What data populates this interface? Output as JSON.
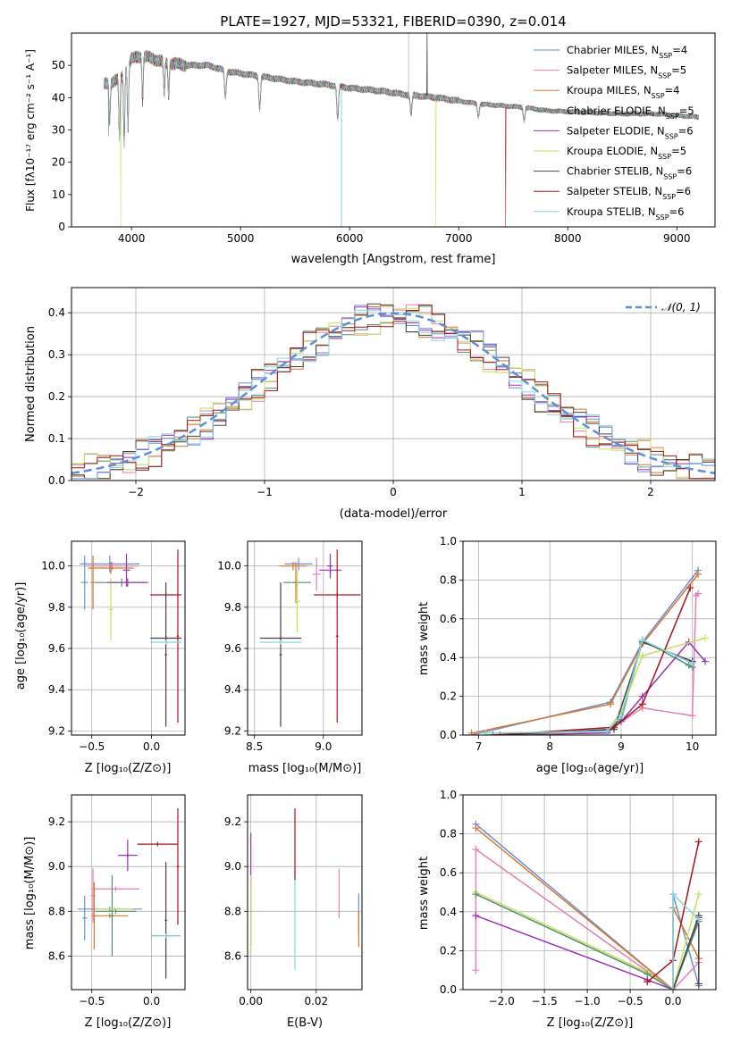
{
  "title": "PLATE=1927, MJD=53321, FIBERID=0390, z=0.014",
  "legend_labels": [
    {
      "base": "Chabrier MILES, N",
      "sub": "SSP",
      "rest": "=4",
      "color": "#6a8fd6"
    },
    {
      "base": "Salpeter MILES, N",
      "sub": "SSP",
      "rest": "=5",
      "color": "#e57fb4"
    },
    {
      "base": "Kroupa MILES, N",
      "sub": "SSP",
      "rest": "=4",
      "color": "#d9762a"
    },
    {
      "base": "Chabrier ELODIE, N",
      "sub": "SSP",
      "rest": "=5",
      "color": "#4f8f73"
    },
    {
      "base": "Salpeter ELODIE, N",
      "sub": "SSP",
      "rest": "=6",
      "color": "#9b32b5"
    },
    {
      "base": "Kroupa ELODIE, N",
      "sub": "SSP",
      "rest": "=5",
      "color": "#c6e05a"
    },
    {
      "base": "Chabrier STELIB, N",
      "sub": "SSP",
      "rest": "=6",
      "color": "#444444"
    },
    {
      "base": "Salpeter STELIB, N",
      "sub": "SSP",
      "rest": "=6",
      "color": "#a8141b"
    },
    {
      "base": "Kroupa STELIB, N",
      "sub": "SSP",
      "rest": "=6",
      "color": "#85d6e0"
    }
  ],
  "labels": {
    "spec_xlabel": "wavelength [Angstrom, rest frame]",
    "spec_ylabel": "Flux [fλ10⁻¹⁷ erg cm⁻² s⁻¹ A⁻¹]",
    "resid_xlabel": "(data-model)/error",
    "resid_ylabel": "Normed distribution",
    "resid_legend": "𝒩(0, 1)",
    "agez_ylabel": "age  [log₁₀(age/yr)]",
    "agez_xlabel": "Z [log₁₀(Z/Z⊙)]",
    "agemass_xlabel": "mass [log₁₀(M/M⊙)]",
    "mwage_xlabel": "age  [log₁₀(age/yr)]",
    "mwage_ylabel": "mass weight",
    "massz_ylabel": "mass [log₁₀(M/M⊙)]",
    "massz_xlabel": "Z [log₁₀(Z/Z⊙)]",
    "massebv_xlabel": "E(B-V)",
    "mwz_xlabel": "Z [log₁₀(Z/Z⊙)]",
    "mwz_ylabel": "mass weight"
  },
  "chart_data": [
    {
      "type": "line",
      "title": "PLATE=1927, MJD=53321, FIBERID=0390, z=0.014",
      "xlabel": "wavelength [Angstrom, rest frame]",
      "ylabel": "Flux [fλ10^-17 erg cm^-2 s^-1 A^-1]",
      "xlim": [
        3450,
        9350
      ],
      "ylim": [
        0,
        60
      ],
      "xticks": [
        4000,
        5000,
        6000,
        7000,
        8000,
        9000
      ],
      "yticks": [
        0,
        10,
        20,
        30,
        40,
        50
      ],
      "x_range": [
        3750,
        9200
      ],
      "continuum": [
        [
          3750,
          44
        ],
        [
          3900,
          46
        ],
        [
          4000,
          52
        ],
        [
          4100,
          53
        ],
        [
          4300,
          51
        ],
        [
          4500,
          50
        ],
        [
          4700,
          50
        ],
        [
          4900,
          48
        ],
        [
          5100,
          47
        ],
        [
          5300,
          46
        ],
        [
          5500,
          45
        ],
        [
          5800,
          44
        ],
        [
          6000,
          43
        ],
        [
          6300,
          42
        ],
        [
          6500,
          41
        ],
        [
          6800,
          40
        ],
        [
          7000,
          39
        ],
        [
          7200,
          38
        ],
        [
          7400,
          37.5
        ],
        [
          7600,
          37
        ],
        [
          7800,
          36
        ],
        [
          8100,
          35.5
        ],
        [
          8500,
          35
        ],
        [
          8800,
          35
        ],
        [
          9200,
          34
        ]
      ],
      "absorption_lines": [
        [
          3800,
          12
        ],
        [
          3890,
          18
        ],
        [
          3933,
          22
        ],
        [
          3968,
          20
        ],
        [
          4102,
          14
        ],
        [
          4300,
          10
        ],
        [
          4340,
          10
        ],
        [
          4861,
          8
        ],
        [
          5175,
          10
        ],
        [
          5890,
          10
        ],
        [
          6563,
          6
        ],
        [
          7180,
          4
        ],
        [
          7600,
          4
        ]
      ],
      "spikes_down": [
        [
          3790,
          28,
          "#4f8f73"
        ],
        [
          3902,
          0,
          "#c6e05a"
        ],
        [
          5925,
          0,
          "#85d6e0"
        ],
        [
          6790,
          0,
          "#c6e05a"
        ],
        [
          7430,
          0,
          "#a8141b"
        ]
      ],
      "spikes_up": [
        [
          6540,
          60,
          "#aaaaaa"
        ],
        [
          6710,
          60,
          "#444444"
        ]
      ],
      "legend_position": "upper right"
    },
    {
      "type": "histogram",
      "xlabel": "(data-model)/error",
      "ylabel": "Normed distribution",
      "xlim": [
        -2.5,
        2.5
      ],
      "ylim": [
        0,
        0.46
      ],
      "xticks": [
        -2,
        -1,
        0,
        1,
        2
      ],
      "yticks": [
        0.0,
        0.1,
        0.2,
        0.3,
        0.4
      ],
      "bin_width": 0.1,
      "series_envelope": "normal-like, peak ~0.40 at 0",
      "reference_curve": {
        "name": "𝒩(0, 1)",
        "mean": 0,
        "sigma": 1,
        "style": "dashed",
        "color": "#5b8fd6"
      },
      "legend_position": "upper right",
      "grid": true
    },
    {
      "type": "errorbar",
      "xlabel": "Z [log10(Z/Z⊙)]",
      "ylabel": "age  [log10(age/yr)]",
      "xlim": [
        -0.67,
        0.28
      ],
      "ylim": [
        9.18,
        10.12
      ],
      "xticks": [
        -0.5,
        0.0
      ],
      "yticks": [
        9.2,
        9.4,
        9.6,
        9.8,
        10.0
      ],
      "grid": true,
      "points": [
        {
          "x": -0.35,
          "xerr": 0.25,
          "y": 10.01,
          "yerr": 0.04,
          "color": "#6a8fd6"
        },
        {
          "x": -0.56,
          "xerr": 0.03,
          "y": 9.92,
          "yerr": 0.13,
          "color": "#6a8fd6"
        },
        {
          "x": -0.33,
          "xerr": 0.22,
          "y": 10.0,
          "yerr": 0.02,
          "color": "#e57fb4"
        },
        {
          "x": -0.49,
          "xerr": 0.02,
          "y": 9.92,
          "yerr": 0.13,
          "color": "#d9762a"
        },
        {
          "x": -0.34,
          "xerr": 0.19,
          "y": 9.99,
          "yerr": 0.03,
          "color": "#d9762a"
        },
        {
          "x": -0.25,
          "xerr": 0.22,
          "y": 9.92,
          "yerr": 0.02,
          "color": "#4f8f73"
        },
        {
          "x": -0.34,
          "xerr": 0.02,
          "y": 9.79,
          "yerr": 0.15,
          "color": "#c6e05a"
        },
        {
          "x": -0.2,
          "xerr": 0.17,
          "y": 9.92,
          "yerr": 0.02,
          "color": "#9b32b5"
        },
        {
          "x": -0.21,
          "xerr": 0.03,
          "y": 9.98,
          "yerr": 0.08,
          "color": "#9b32b5"
        },
        {
          "x": 0.12,
          "xerr": 0.13,
          "y": 9.86,
          "yerr": 0.01,
          "color": "#a8141b"
        },
        {
          "x": 0.22,
          "xerr": 0.01,
          "y": 9.66,
          "yerr": 0.42,
          "color": "#a8141b"
        },
        {
          "x": 0.12,
          "xerr": 0.13,
          "y": 9.65,
          "yerr": 0.01,
          "color": "#444444"
        },
        {
          "x": 0.12,
          "xerr": 0.01,
          "y": 9.57,
          "yerr": 0.35,
          "color": "#444444"
        },
        {
          "x": 0.12,
          "xerr": 0.13,
          "y": 9.63,
          "yerr": 0.01,
          "color": "#85d6e0"
        }
      ]
    },
    {
      "type": "errorbar",
      "xlabel": "mass [log10(M/M⊙)]",
      "xlim": [
        8.45,
        9.28
      ],
      "ylim": [
        9.18,
        10.12
      ],
      "xticks": [
        8.5,
        9.0
      ],
      "yticks": [
        9.2,
        9.4,
        9.6,
        9.8,
        10.0
      ],
      "grid": true,
      "points": [
        {
          "x": 8.82,
          "xerr": 0.1,
          "y": 10.01,
          "yerr": 0.03,
          "color": "#6a8fd6"
        },
        {
          "x": 8.95,
          "xerr": 0.03,
          "y": 9.96,
          "yerr": 0.08,
          "color": "#e57fb4"
        },
        {
          "x": 8.78,
          "xerr": 0.1,
          "y": 10.0,
          "yerr": 0.02,
          "color": "#d9762a"
        },
        {
          "x": 8.8,
          "xerr": 0.02,
          "y": 9.92,
          "yerr": 0.1,
          "color": "#d9762a"
        },
        {
          "x": 8.81,
          "xerr": 0.1,
          "y": 9.92,
          "yerr": 0.02,
          "color": "#4f8f73"
        },
        {
          "x": 8.81,
          "xerr": 0.02,
          "y": 9.83,
          "yerr": 0.15,
          "color": "#c6e05a"
        },
        {
          "x": 9.05,
          "xerr": 0.08,
          "y": 9.98,
          "yerr": 0.02,
          "color": "#9b32b5"
        },
        {
          "x": 9.05,
          "xerr": 0.02,
          "y": 10.0,
          "yerr": 0.06,
          "color": "#9b32b5"
        },
        {
          "x": 9.1,
          "xerr": 0.17,
          "y": 9.86,
          "yerr": 0.01,
          "color": "#a8141b"
        },
        {
          "x": 9.1,
          "xerr": 0.01,
          "y": 9.66,
          "yerr": 0.42,
          "color": "#a8141b"
        },
        {
          "x": 8.69,
          "xerr": 0.15,
          "y": 9.65,
          "yerr": 0.01,
          "color": "#444444"
        },
        {
          "x": 8.69,
          "xerr": 0.01,
          "y": 9.57,
          "yerr": 0.35,
          "color": "#444444"
        },
        {
          "x": 8.69,
          "xerr": 0.15,
          "y": 9.63,
          "yerr": 0.01,
          "color": "#85d6e0"
        }
      ]
    },
    {
      "type": "line",
      "xlabel": "age  [log10(age/yr)]",
      "ylabel": "mass weight",
      "xlim": [
        6.78,
        10.33
      ],
      "ylim": [
        0,
        1.0
      ],
      "xticks": [
        7,
        8,
        9,
        10
      ],
      "yticks": [
        0.0,
        0.2,
        0.4,
        0.6,
        0.8,
        1.0
      ],
      "grid": true,
      "series": [
        {
          "color": "#6a8fd6",
          "x": [
            6.9,
            8.85,
            9.3,
            10.08
          ],
          "y": [
            0.0,
            0.17,
            0.48,
            0.85
          ]
        },
        {
          "color": "#d9762a",
          "x": [
            6.9,
            8.85,
            9.3,
            10.08
          ],
          "y": [
            0.01,
            0.16,
            0.47,
            0.83
          ]
        },
        {
          "color": "#e57fb4",
          "x": [
            7.6,
            8.85,
            9.3,
            10.0,
            10.05,
            10.08
          ],
          "y": [
            0.0,
            0.03,
            0.14,
            0.1,
            0.72,
            0.73
          ]
        },
        {
          "color": "#4f8f73",
          "x": [
            7.1,
            8.8,
            9.0,
            9.3,
            9.95,
            10.0
          ],
          "y": [
            0.0,
            0.02,
            0.08,
            0.49,
            0.36,
            0.35
          ]
        },
        {
          "color": "#9b32b5",
          "x": [
            7.2,
            8.8,
            9.0,
            9.3,
            9.95,
            10.18
          ],
          "y": [
            0.0,
            0.01,
            0.07,
            0.2,
            0.48,
            0.38
          ]
        },
        {
          "color": "#c6e05a",
          "x": [
            7.1,
            8.8,
            9.0,
            9.3,
            10.18
          ],
          "y": [
            0.0,
            0.02,
            0.12,
            0.41,
            0.5
          ]
        },
        {
          "color": "#444444",
          "x": [
            7.3,
            8.9,
            9.3,
            10.0
          ],
          "y": [
            0.0,
            0.03,
            0.48,
            0.38
          ]
        },
        {
          "color": "#a8141b",
          "x": [
            7.2,
            8.9,
            9.3,
            9.97
          ],
          "y": [
            0.0,
            0.04,
            0.16,
            0.76
          ]
        },
        {
          "color": "#85d6e0",
          "x": [
            7.1,
            8.8,
            9.0,
            9.3,
            10.0
          ],
          "y": [
            0.01,
            0.02,
            0.1,
            0.49,
            0.37
          ]
        }
      ]
    },
    {
      "type": "errorbar",
      "xlabel": "Z [log10(Z/Z⊙)]",
      "ylabel": "mass [log10(M/M⊙)]",
      "xlim": [
        -0.67,
        0.28
      ],
      "ylim": [
        8.45,
        9.32
      ],
      "xticks": [
        -0.5,
        0.0
      ],
      "yticks": [
        8.6,
        8.8,
        9.0,
        9.2
      ],
      "grid": true,
      "points": [
        {
          "x": -0.35,
          "xerr": 0.27,
          "y": 8.81,
          "yerr": 0.01,
          "color": "#6a8fd6"
        },
        {
          "x": -0.56,
          "xerr": 0.02,
          "y": 8.77,
          "yerr": 0.1,
          "color": "#6a8fd6"
        },
        {
          "x": -0.3,
          "xerr": 0.2,
          "y": 8.9,
          "yerr": 0.01,
          "color": "#e57fb4"
        },
        {
          "x": -0.49,
          "xerr": 0.02,
          "y": 8.87,
          "yerr": 0.12,
          "color": "#e57fb4"
        },
        {
          "x": -0.35,
          "xerr": 0.15,
          "y": 8.78,
          "yerr": 0.01,
          "color": "#d9762a"
        },
        {
          "x": -0.48,
          "xerr": 0.02,
          "y": 8.78,
          "yerr": 0.15,
          "color": "#d9762a"
        },
        {
          "x": -0.3,
          "xerr": 0.17,
          "y": 8.8,
          "yerr": 0.01,
          "color": "#4f8f73"
        },
        {
          "x": -0.33,
          "xerr": 0.02,
          "y": 8.78,
          "yerr": 0.18,
          "color": "#4f8f73"
        },
        {
          "x": -0.31,
          "xerr": 0.16,
          "y": 8.81,
          "yerr": 0.01,
          "color": "#c6e05a"
        },
        {
          "x": -0.2,
          "xerr": 0.08,
          "y": 9.05,
          "yerr": 0.01,
          "color": "#9b32b5"
        },
        {
          "x": -0.2,
          "xerr": 0.01,
          "y": 9.05,
          "yerr": 0.07,
          "color": "#9b32b5"
        },
        {
          "x": 0.05,
          "xerr": 0.17,
          "y": 9.1,
          "yerr": 0.01,
          "color": "#a8141b"
        },
        {
          "x": 0.22,
          "xerr": 0.01,
          "y": 9.0,
          "yerr": 0.26,
          "color": "#a8141b"
        },
        {
          "x": 0.12,
          "xerr": 0.12,
          "y": 8.69,
          "yerr": 0.01,
          "color": "#444444"
        },
        {
          "x": 0.12,
          "xerr": 0.01,
          "y": 8.76,
          "yerr": 0.26,
          "color": "#444444"
        },
        {
          "x": 0.12,
          "xerr": 0.12,
          "y": 8.69,
          "yerr": 0.01,
          "color": "#85d6e0"
        }
      ]
    },
    {
      "type": "errorbar",
      "xlabel": "E(B-V)",
      "xlim": [
        -0.001,
        0.034
      ],
      "ylim": [
        8.45,
        9.32
      ],
      "xticks": [
        0.0,
        0.02
      ],
      "yticks": [
        8.6,
        8.8,
        9.0,
        9.2
      ],
      "grid": true,
      "points": [
        {
          "x": 0.0,
          "y": 8.9,
          "yerr": 0.25,
          "color": "#9b32b5"
        },
        {
          "x": 0.0,
          "y": 8.79,
          "yerr": 0.17,
          "color": "#c6e05a"
        },
        {
          "x": 0.0135,
          "y": 8.77,
          "yerr": 0.23,
          "color": "#85d6e0"
        },
        {
          "x": 0.0135,
          "y": 9.1,
          "yerr": 0.16,
          "color": "#a8141b"
        },
        {
          "x": 0.027,
          "y": 8.88,
          "yerr": 0.11,
          "color": "#e57fb4"
        },
        {
          "x": 0.033,
          "y": 8.79,
          "yerr": 0.09,
          "color": "#6a8fd6"
        },
        {
          "x": 0.033,
          "y": 8.72,
          "yerr": 0.08,
          "color": "#d9762a"
        }
      ]
    },
    {
      "type": "line",
      "xlabel": "Z [log10(Z/Z⊙)]",
      "ylabel": "mass weight",
      "xlim": [
        -2.45,
        0.5
      ],
      "ylim": [
        0,
        1.0
      ],
      "xticks": [
        -2.0,
        -1.5,
        -1.0,
        -0.5,
        0.0
      ],
      "yticks": [
        0.0,
        0.2,
        0.4,
        0.6,
        0.8,
        1.0
      ],
      "grid": true,
      "series": [
        {
          "color": "#6a8fd6",
          "x": [
            -2.3,
            0.0,
            0.0,
            0.3
          ],
          "y": [
            0.85,
            0.0,
            0.49,
            0.02
          ]
        },
        {
          "color": "#d9762a",
          "x": [
            -2.3,
            0.0,
            0.0,
            0.3
          ],
          "y": [
            0.83,
            0.0,
            0.42,
            0.16
          ]
        },
        {
          "color": "#e57fb4",
          "x": [
            -2.3,
            -2.3,
            0.0,
            0.3
          ],
          "y": [
            0.1,
            0.72,
            0.0,
            0.14
          ]
        },
        {
          "color": "#9b32b5",
          "x": [
            -2.3,
            -0.3,
            0.0,
            0.3
          ],
          "y": [
            0.38,
            0.05,
            0.0,
            0.37
          ]
        },
        {
          "color": "#c6e05a",
          "x": [
            -2.3,
            -0.3,
            0.0,
            0.3
          ],
          "y": [
            0.5,
            0.09,
            0.0,
            0.49
          ]
        },
        {
          "color": "#4f8f73",
          "x": [
            -2.3,
            -0.3,
            0.0,
            0.3
          ],
          "y": [
            0.49,
            0.08,
            0.0,
            0.35
          ]
        },
        {
          "color": "#a8141b",
          "x": [
            -0.3,
            0.0,
            0.3
          ],
          "y": [
            0.04,
            0.15,
            0.76
          ]
        },
        {
          "color": "#444444",
          "x": [
            0.0,
            0.3,
            0.3
          ],
          "y": [
            0.0,
            0.38,
            0.03
          ]
        },
        {
          "color": "#85d6e0",
          "x": [
            0.0,
            0.0,
            0.3
          ],
          "y": [
            0.0,
            0.49,
            0.36
          ]
        }
      ]
    }
  ]
}
